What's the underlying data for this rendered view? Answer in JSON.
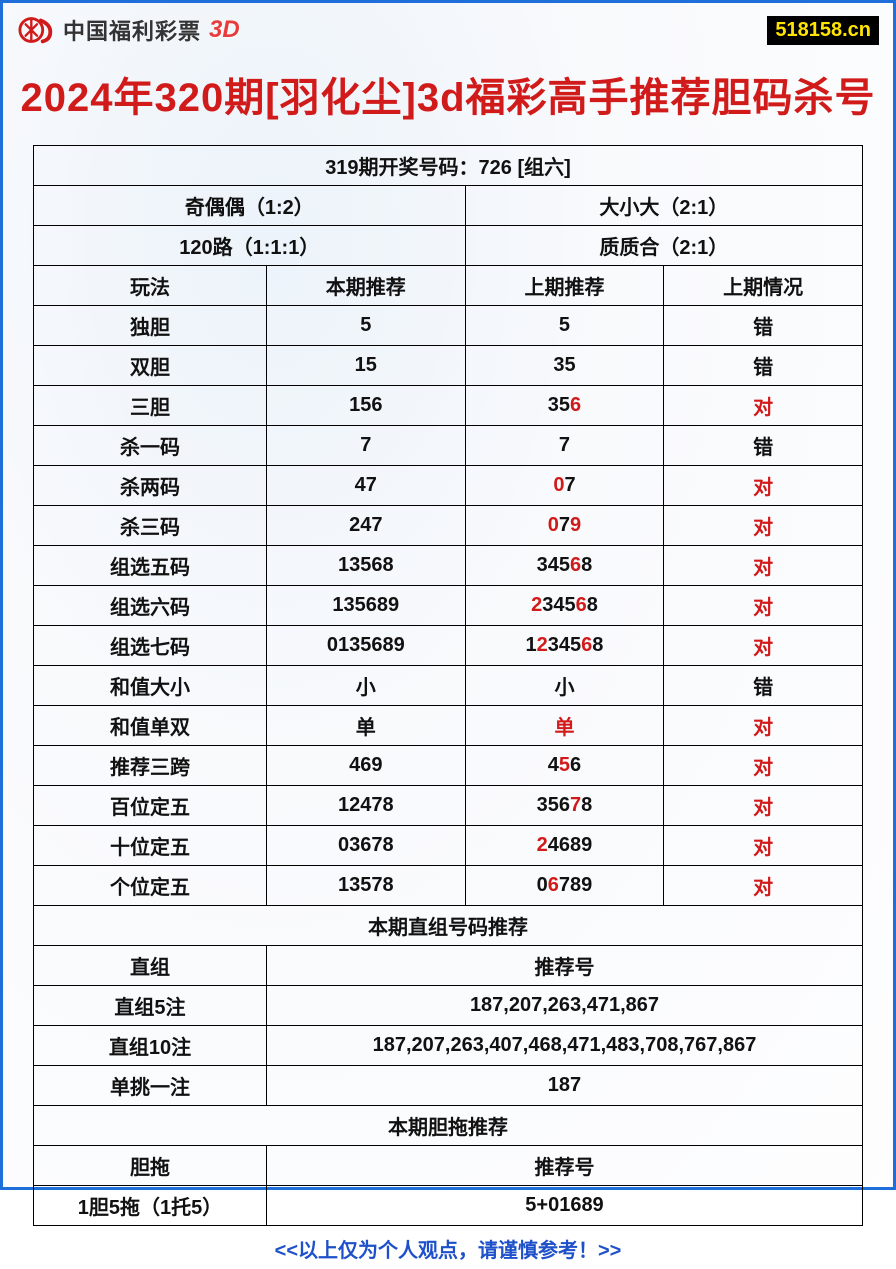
{
  "header": {
    "brand_text": "中国福利彩票",
    "brand_suffix": "3D",
    "site_badge": "518158.cn"
  },
  "title": "2024年320期[羽化尘]3d福彩高手推荐胆码杀号",
  "top_banner": "319期开奖号码：726 [组六]",
  "pair_rows": [
    {
      "left": "奇偶偶（1:2）",
      "right": "大小大（2:1）"
    },
    {
      "left": "120路（1:1:1）",
      "right": "质质合（2:1）"
    }
  ],
  "columns": [
    "玩法",
    "本期推荐",
    "上期推荐",
    "上期情况"
  ],
  "rows": [
    {
      "name": "独胆",
      "current": "5",
      "prev": [
        {
          "t": "5",
          "r": false
        }
      ],
      "result": "错",
      "result_red": false
    },
    {
      "name": "双胆",
      "current": "15",
      "prev": [
        {
          "t": "35",
          "r": false
        }
      ],
      "result": "错",
      "result_red": false
    },
    {
      "name": "三胆",
      "current": "156",
      "prev": [
        {
          "t": "35",
          "r": false
        },
        {
          "t": "6",
          "r": true
        }
      ],
      "result": "对",
      "result_red": true
    },
    {
      "name": "杀一码",
      "current": "7",
      "prev": [
        {
          "t": "7",
          "r": false
        }
      ],
      "result": "错",
      "result_red": false
    },
    {
      "name": "杀两码",
      "current": "47",
      "prev": [
        {
          "t": "0",
          "r": true
        },
        {
          "t": "7",
          "r": false
        }
      ],
      "result": "对",
      "result_red": true
    },
    {
      "name": "杀三码",
      "current": "247",
      "prev": [
        {
          "t": "0",
          "r": true
        },
        {
          "t": "7",
          "r": false
        },
        {
          "t": "9",
          "r": true
        }
      ],
      "result": "对",
      "result_red": true
    },
    {
      "name": "组选五码",
      "current": "13568",
      "prev": [
        {
          "t": "345",
          "r": false
        },
        {
          "t": "6",
          "r": true
        },
        {
          "t": "8",
          "r": false
        }
      ],
      "result": "对",
      "result_red": true
    },
    {
      "name": "组选六码",
      "current": "135689",
      "prev": [
        {
          "t": "2",
          "r": true
        },
        {
          "t": "345",
          "r": false
        },
        {
          "t": "6",
          "r": true
        },
        {
          "t": "8",
          "r": false
        }
      ],
      "result": "对",
      "result_red": true
    },
    {
      "name": "组选七码",
      "current": "0135689",
      "prev": [
        {
          "t": "1",
          "r": false
        },
        {
          "t": "2",
          "r": true
        },
        {
          "t": "345",
          "r": false
        },
        {
          "t": "6",
          "r": true
        },
        {
          "t": "8",
          "r": false
        }
      ],
      "result": "对",
      "result_red": true
    },
    {
      "name": "和值大小",
      "current": "小",
      "prev": [
        {
          "t": "小",
          "r": false
        }
      ],
      "result": "错",
      "result_red": false
    },
    {
      "name": "和值单双",
      "current": "单",
      "prev": [
        {
          "t": "单",
          "r": true
        }
      ],
      "result": "对",
      "result_red": true
    },
    {
      "name": "推荐三跨",
      "current": "469",
      "prev": [
        {
          "t": "4",
          "r": false
        },
        {
          "t": "5",
          "r": true
        },
        {
          "t": "6",
          "r": false
        }
      ],
      "result": "对",
      "result_red": true
    },
    {
      "name": "百位定五",
      "current": "12478",
      "prev": [
        {
          "t": "356",
          "r": false
        },
        {
          "t": "7",
          "r": true
        },
        {
          "t": "8",
          "r": false
        }
      ],
      "result": "对",
      "result_red": true
    },
    {
      "name": "十位定五",
      "current": "03678",
      "prev": [
        {
          "t": "2",
          "r": true
        },
        {
          "t": "4689",
          "r": false
        }
      ],
      "result": "对",
      "result_red": true
    },
    {
      "name": "个位定五",
      "current": "13578",
      "prev": [
        {
          "t": "0",
          "r": false
        },
        {
          "t": "6",
          "r": true
        },
        {
          "t": "789",
          "r": false
        }
      ],
      "result": "对",
      "result_red": true
    }
  ],
  "section1_title": "本期直组号码推荐",
  "section1_header": {
    "left": "直组",
    "right": "推荐号"
  },
  "section1_rows": [
    {
      "left": "直组5注",
      "right": "187,207,263,471,867"
    },
    {
      "left": "直组10注",
      "right": "187,207,263,407,468,471,483,708,767,867"
    },
    {
      "left": "单挑一注",
      "right": "187"
    }
  ],
  "section2_title": "本期胆拖推荐",
  "section2_header": {
    "left": "胆拖",
    "right": "推荐号"
  },
  "section2_rows": [
    {
      "left": "1胆5拖（1托5）",
      "right": "5+01689"
    }
  ],
  "footer_note": "<<以上仅为个人观点，请谨慎参考！>>",
  "colors": {
    "border": "#1e6fd9",
    "title_red": "#d11a1a",
    "text_red": "#d11a1a",
    "footer_blue": "#1e50c9",
    "badge_bg": "#000000",
    "badge_fg": "#ffe400"
  }
}
